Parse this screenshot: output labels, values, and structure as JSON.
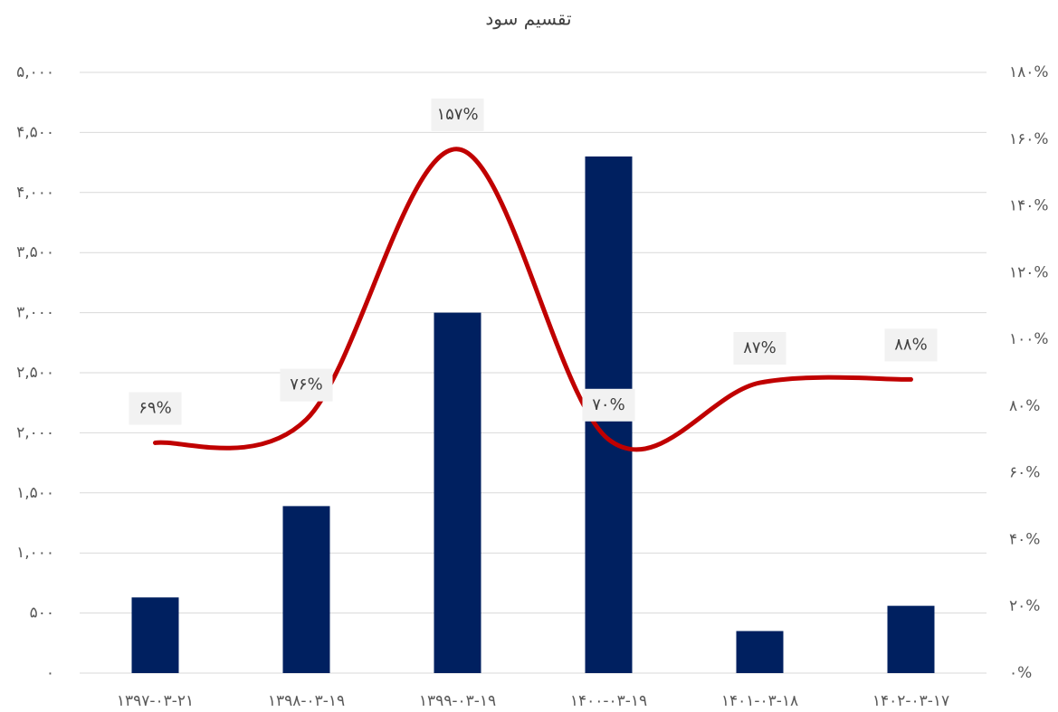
{
  "chart_data": {
    "type": "combo",
    "title": "تقسیم سود",
    "categories": [
      "۱۳۹۷-۰۳-۲۱",
      "۱۳۹۸-۰۳-۱۹",
      "۱۳۹۹-۰۳-۱۹",
      "۱۴۰۰-۰۳-۱۹",
      "۱۴۰۱-۰۳-۱۸",
      "۱۴۰۲-۰۳-۱۷"
    ],
    "series": [
      {
        "type": "bar",
        "color": "#002060",
        "values": [
          630,
          1390,
          3000,
          4300,
          350,
          560
        ]
      },
      {
        "type": "line",
        "color": "#c00000",
        "axis": "y2",
        "smooth": true,
        "values": [
          69,
          76,
          157,
          70,
          87,
          88
        ],
        "value_labels": [
          "۶۹%",
          "۷۶%",
          "۱۵۷%",
          "۷۰%",
          "۸۷%",
          "۸۸%"
        ]
      }
    ],
    "ylim": [
      0,
      5000
    ],
    "yticks": [
      {
        "value": 0,
        "label": "۰"
      },
      {
        "value": 500,
        "label": "۵۰۰"
      },
      {
        "value": 1000,
        "label": "۱,۰۰۰"
      },
      {
        "value": 1500,
        "label": "۱,۵۰۰"
      },
      {
        "value": 2000,
        "label": "۲,۰۰۰"
      },
      {
        "value": 2500,
        "label": "۲,۵۰۰"
      },
      {
        "value": 3000,
        "label": "۳,۰۰۰"
      },
      {
        "value": 3500,
        "label": "۳,۵۰۰"
      },
      {
        "value": 4000,
        "label": "۴,۰۰۰"
      },
      {
        "value": 4500,
        "label": "۴,۵۰۰"
      },
      {
        "value": 5000,
        "label": "۵,۰۰۰"
      }
    ],
    "y2lim": [
      0,
      180
    ],
    "y2ticks": [
      {
        "value": 0,
        "label": "۰%"
      },
      {
        "value": 20,
        "label": "۲۰%"
      },
      {
        "value": 40,
        "label": "۴۰%"
      },
      {
        "value": 60,
        "label": "۶۰%"
      },
      {
        "value": 80,
        "label": "۸۰%"
      },
      {
        "value": 100,
        "label": "۱۰۰%"
      },
      {
        "value": 120,
        "label": "۱۲۰%"
      },
      {
        "value": 140,
        "label": "۱۴۰%"
      },
      {
        "value": 160,
        "label": "۱۶۰%"
      },
      {
        "value": 180,
        "label": "۱۸۰%"
      }
    ],
    "grid": true
  }
}
